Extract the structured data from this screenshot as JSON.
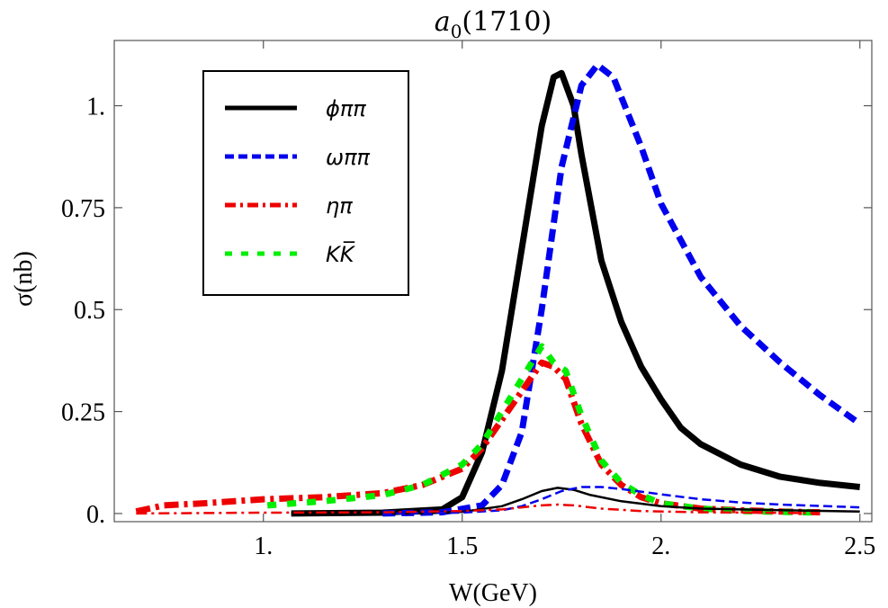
{
  "chart_data": {
    "type": "line",
    "title": "a0(1710)",
    "title_main": "a",
    "title_sub": "0",
    "title_rest": "(1710)",
    "xlabel": "W(GeV)",
    "ylabel": "σ(nb)",
    "xlim": [
      0.625,
      2.53
    ],
    "ylim": [
      -0.02,
      1.16
    ],
    "x_ticks": [
      {
        "value": 1.0,
        "label": "1."
      },
      {
        "value": 1.5,
        "label": "1.5"
      },
      {
        "value": 2.0,
        "label": "2."
      },
      {
        "value": 2.5,
        "label": "2.5"
      }
    ],
    "y_ticks": [
      {
        "value": 0.0,
        "label": "0."
      },
      {
        "value": 0.25,
        "label": "0.25"
      },
      {
        "value": 0.5,
        "label": "0.5"
      },
      {
        "value": 0.75,
        "label": "0.75"
      },
      {
        "value": 1.0,
        "label": "1."
      }
    ],
    "grid": false,
    "legend_position": "top-left",
    "legend": [
      {
        "label": "ϕππ",
        "color": "#000000",
        "style": "solid"
      },
      {
        "label": "ωππ",
        "color": "#0000ee",
        "style": "dashed"
      },
      {
        "label": "ηπ",
        "color": "#ee0000",
        "style": "dashdot"
      },
      {
        "label": "KK̅",
        "color": "#00ee00",
        "style": "dashed-wide"
      }
    ],
    "series": [
      {
        "label_ref": 0,
        "width": "thick",
        "color": "#000000",
        "style": "solid",
        "x": [
          1.07,
          1.3,
          1.45,
          1.5,
          1.55,
          1.6,
          1.65,
          1.7,
          1.73,
          1.75,
          1.78,
          1.8,
          1.85,
          1.9,
          1.95,
          2.0,
          2.05,
          2.1,
          2.2,
          2.3,
          2.4,
          2.5
        ],
        "y": [
          0.0,
          0.002,
          0.01,
          0.04,
          0.15,
          0.35,
          0.65,
          0.95,
          1.07,
          1.08,
          1.0,
          0.88,
          0.62,
          0.47,
          0.36,
          0.28,
          0.21,
          0.17,
          0.12,
          0.09,
          0.075,
          0.065
        ]
      },
      {
        "label_ref": 1,
        "width": "thick",
        "color": "#0000ee",
        "style": "dashed",
        "x": [
          1.3,
          1.45,
          1.55,
          1.6,
          1.65,
          1.7,
          1.75,
          1.8,
          1.84,
          1.88,
          1.95,
          2.0,
          2.1,
          2.2,
          2.3,
          2.4,
          2.5
        ],
        "y": [
          0.0,
          0.003,
          0.02,
          0.07,
          0.2,
          0.5,
          0.85,
          1.05,
          1.1,
          1.07,
          0.9,
          0.76,
          0.58,
          0.46,
          0.37,
          0.29,
          0.22
        ]
      },
      {
        "label_ref": 2,
        "width": "thick",
        "color": "#ee0000",
        "style": "dashdot",
        "x": [
          0.68,
          0.75,
          0.85,
          1.0,
          1.15,
          1.3,
          1.4,
          1.5,
          1.55,
          1.6,
          1.65,
          1.7,
          1.73,
          1.76,
          1.8,
          1.85,
          1.9,
          1.95,
          2.0,
          2.1,
          2.2,
          2.3,
          2.4
        ],
        "y": [
          0.005,
          0.02,
          0.025,
          0.035,
          0.04,
          0.05,
          0.07,
          0.11,
          0.16,
          0.23,
          0.3,
          0.37,
          0.36,
          0.33,
          0.22,
          0.12,
          0.07,
          0.04,
          0.025,
          0.012,
          0.008,
          0.005,
          0.003
        ]
      },
      {
        "label_ref": 3,
        "width": "thick",
        "color": "#00ee00",
        "style": "dashed-wide",
        "x": [
          1.01,
          1.15,
          1.3,
          1.4,
          1.5,
          1.55,
          1.6,
          1.65,
          1.7,
          1.73,
          1.76,
          1.8,
          1.85,
          1.9,
          1.95,
          2.0,
          2.1,
          2.2,
          2.3,
          2.4
        ],
        "y": [
          0.02,
          0.03,
          0.045,
          0.07,
          0.12,
          0.17,
          0.25,
          0.33,
          0.41,
          0.37,
          0.35,
          0.24,
          0.13,
          0.075,
          0.045,
          0.025,
          0.012,
          0.006,
          0.004,
          0.002
        ]
      },
      {
        "label_ref": 0,
        "width": "thin",
        "color": "#000000",
        "style": "solid",
        "x": [
          1.07,
          1.4,
          1.5,
          1.6,
          1.65,
          1.7,
          1.74,
          1.78,
          1.82,
          1.9,
          2.0,
          2.1,
          2.3,
          2.5
        ],
        "y": [
          0.0,
          0.0,
          0.004,
          0.018,
          0.035,
          0.055,
          0.063,
          0.058,
          0.046,
          0.03,
          0.018,
          0.012,
          0.008,
          0.005
        ]
      },
      {
        "label_ref": 1,
        "width": "thin",
        "color": "#0000ee",
        "style": "dashed",
        "x": [
          1.3,
          1.5,
          1.6,
          1.65,
          1.7,
          1.75,
          1.8,
          1.85,
          1.9,
          2.0,
          2.1,
          2.2,
          2.3,
          2.5
        ],
        "y": [
          0.0,
          0.002,
          0.008,
          0.018,
          0.035,
          0.055,
          0.065,
          0.065,
          0.06,
          0.047,
          0.035,
          0.027,
          0.022,
          0.015
        ]
      },
      {
        "label_ref": 2,
        "width": "thin",
        "color": "#ee0000",
        "style": "dashdot",
        "x": [
          0.68,
          1.0,
          1.3,
          1.5,
          1.6,
          1.65,
          1.7,
          1.74,
          1.78,
          1.85,
          1.95,
          2.1,
          2.4
        ],
        "y": [
          0.0,
          0.002,
          0.003,
          0.006,
          0.01,
          0.015,
          0.02,
          0.022,
          0.02,
          0.012,
          0.006,
          0.003,
          0.001
        ]
      }
    ]
  }
}
